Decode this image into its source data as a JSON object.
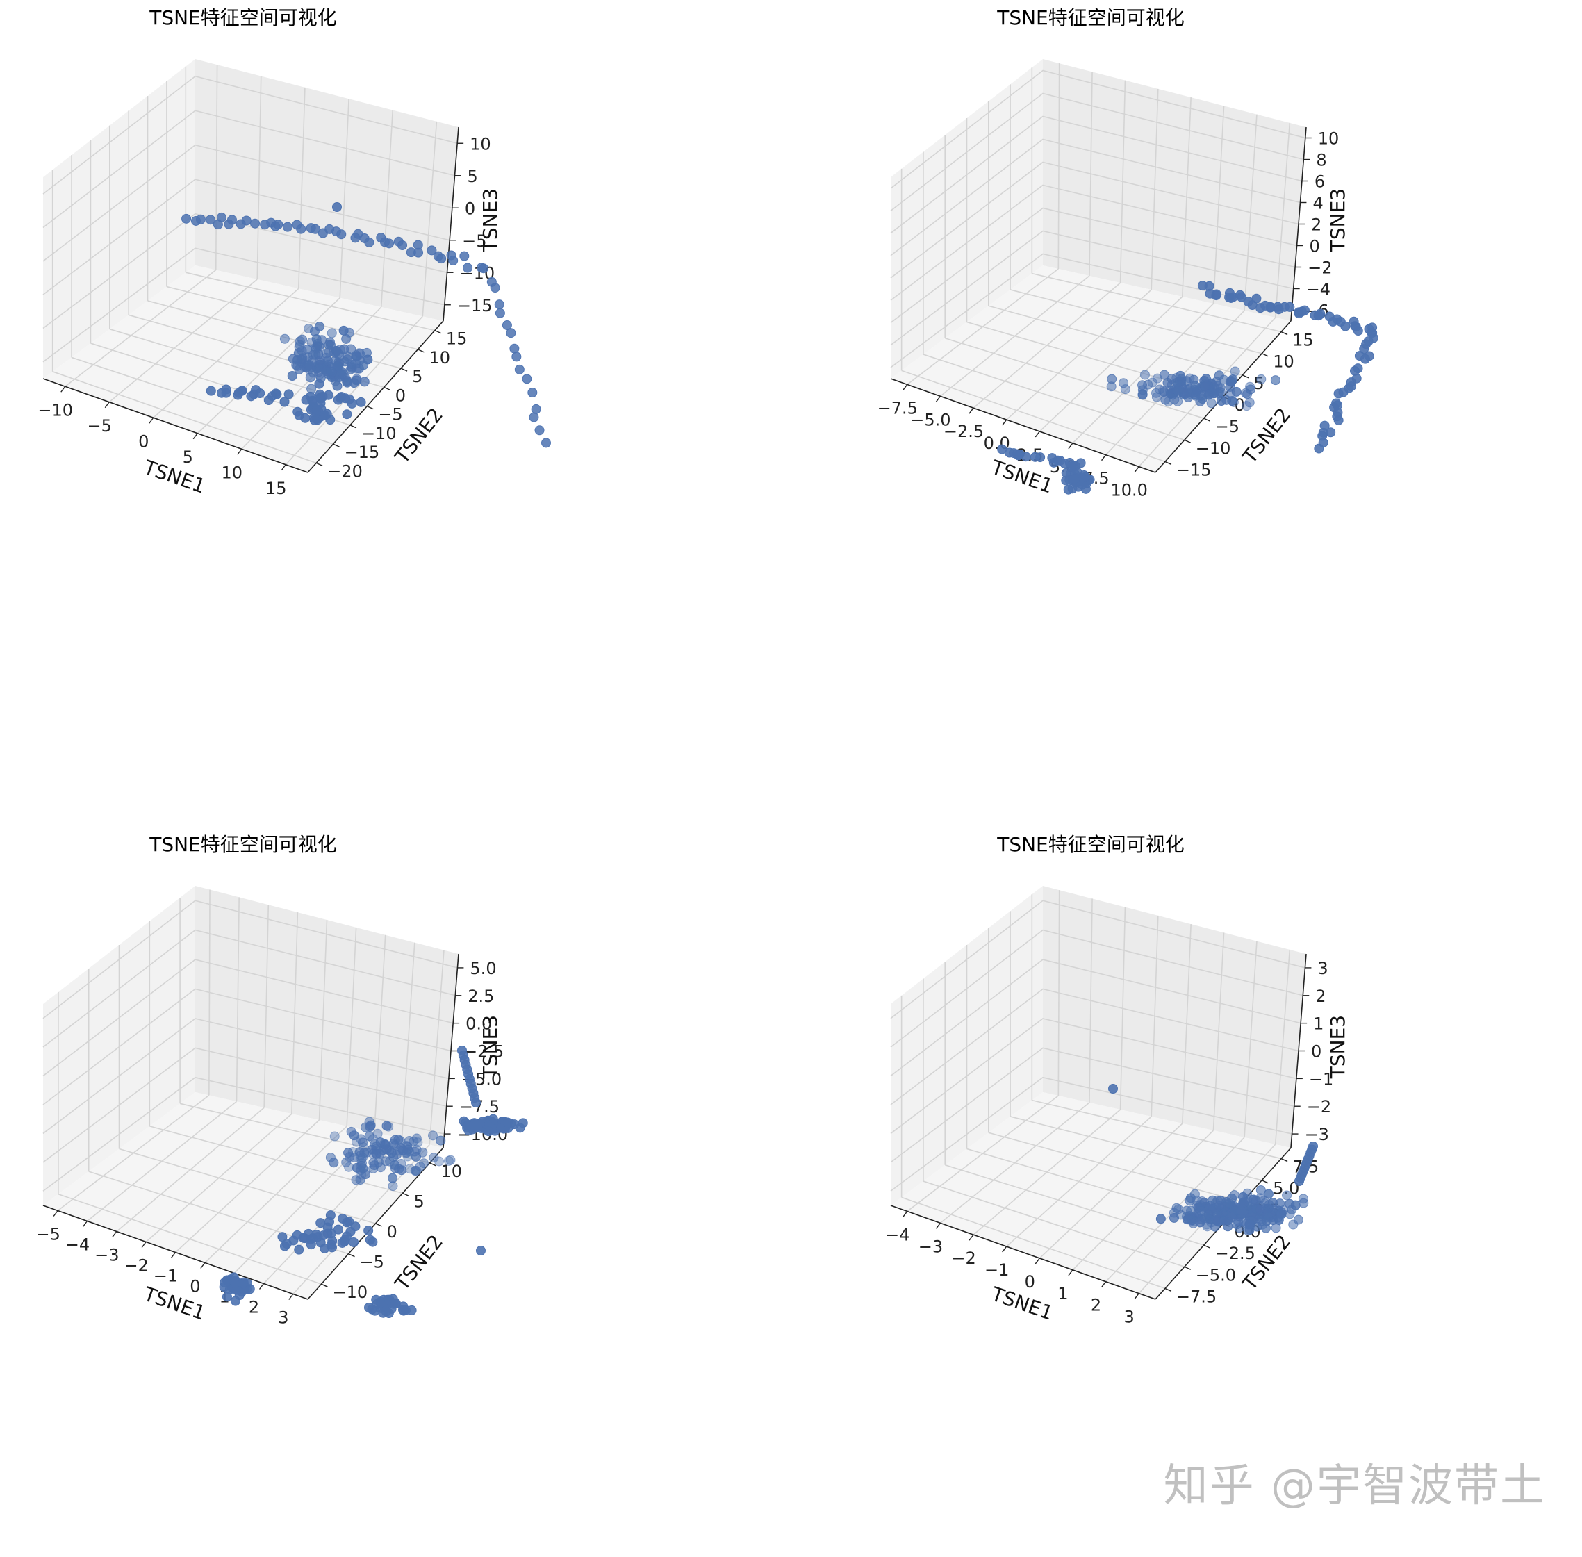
{
  "watermark": "知乎 @宇智波带土",
  "chart_data": [
    {
      "type": "scatter",
      "title": "TSNE特征空间可视化",
      "xlabel": "TSNE1",
      "ylabel": "TSNE2",
      "zlabel": "TSNE3",
      "xticks": [
        "−10",
        "−5",
        "0",
        "5",
        "10",
        "15"
      ],
      "yticks": [
        "−20",
        "−15",
        "−10",
        "−5",
        "0",
        "5",
        "10",
        "15"
      ],
      "zticks": [
        "−15",
        "−10",
        "−5",
        "0",
        "5",
        "10"
      ],
      "grid": true,
      "color": "#4c72b0",
      "clusters": [
        {
          "shape": "arc",
          "count": 60,
          "desc": "upper arc"
        },
        {
          "shape": "blob",
          "count": 130,
          "desc": "central cloud"
        },
        {
          "shape": "line",
          "count": 30,
          "desc": "lower-left strand"
        }
      ]
    },
    {
      "type": "scatter",
      "title": "TSNE特征空间可视化",
      "xlabel": "TSNE1",
      "ylabel": "TSNE2",
      "zlabel": "TSNE3",
      "xticks": [
        "−7.5",
        "−5.0",
        "−2.5",
        "0.0",
        "2.5",
        "5.0",
        "7.5",
        "10.0"
      ],
      "yticks": [
        "−15",
        "−10",
        "−5",
        "0",
        "5",
        "10",
        "15"
      ],
      "zticks": [
        "−6",
        "−4",
        "−2",
        "0",
        "2",
        "4",
        "6",
        "8",
        "10"
      ],
      "grid": true,
      "color": "#4c72b0",
      "clusters": [
        {
          "shape": "arc",
          "count": 70
        },
        {
          "shape": "blob",
          "count": 120
        },
        {
          "shape": "line",
          "count": 40
        }
      ]
    },
    {
      "type": "scatter",
      "title": "TSNE特征空间可视化",
      "xlabel": "TSNE1",
      "ylabel": "TSNE2",
      "zlabel": "TSNE3",
      "xticks": [
        "−5",
        "−4",
        "−3",
        "−2",
        "−1",
        "0",
        "1",
        "2",
        "3"
      ],
      "yticks": [
        "−10",
        "−5",
        "0",
        "5",
        "10"
      ],
      "zticks": [
        "−10.0",
        "−7.5",
        "−5.0",
        "−2.5",
        "0.0",
        "2.5",
        "5.0"
      ],
      "grid": true,
      "color": "#4c72b0",
      "clusters": [
        {
          "shape": "blob",
          "count": 110
        },
        {
          "shape": "line",
          "count": 50
        },
        {
          "shape": "lower",
          "count": 80
        }
      ]
    },
    {
      "type": "scatter",
      "title": "TSNE特征空间可视化",
      "xlabel": "TSNE1",
      "ylabel": "TSNE2",
      "zlabel": "TSNE3",
      "xticks": [
        "−4",
        "−3",
        "−2",
        "−1",
        "0",
        "1",
        "2",
        "3"
      ],
      "yticks": [
        "−7.5",
        "−5.0",
        "−2.5",
        "0.0",
        "2.5",
        "5.0",
        "7.5"
      ],
      "zticks": [
        "−3",
        "−2",
        "−1",
        "0",
        "1",
        "2",
        "3"
      ],
      "grid": true,
      "color": "#4c72b0",
      "clusters": [
        {
          "shape": "blob",
          "count": 200
        },
        {
          "shape": "line",
          "count": 12
        },
        {
          "shape": "single",
          "count": 1
        }
      ]
    }
  ]
}
